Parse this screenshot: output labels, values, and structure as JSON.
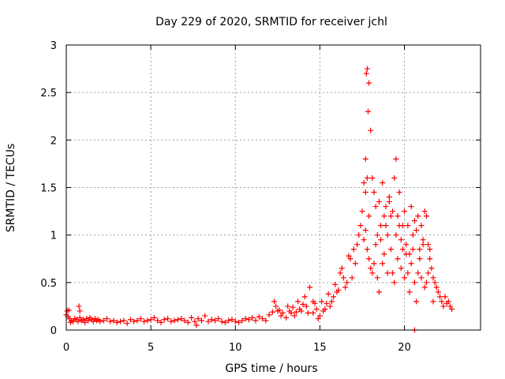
{
  "chart_data": {
    "type": "scatter",
    "title": "Day 229 of 2020, SRMTID for receiver jchl",
    "xlabel": "GPS time / hours",
    "ylabel": "SRMTID / TECUs",
    "xlim": [
      0,
      24.5
    ],
    "ylim": [
      0,
      3
    ],
    "xticks": [
      0,
      5,
      10,
      15,
      20
    ],
    "xtick_labels": [
      "0",
      "5",
      "10",
      "15",
      "20"
    ],
    "yticks": [
      0,
      0.5,
      1,
      1.5,
      2,
      2.5,
      3
    ],
    "ytick_labels": [
      "0",
      "0.5",
      "1",
      "1.5",
      "2",
      "2.5",
      "3"
    ],
    "grid": true,
    "marker": "+",
    "colors": {
      "marker": "#ff0000",
      "grid": "#a0a0a0",
      "axis": "#000000"
    },
    "series": [
      {
        "name": "SRMTID",
        "x": [
          0.0,
          0.05,
          0.1,
          0.15,
          0.2,
          0.25,
          0.3,
          0.4,
          0.5,
          0.6,
          0.7,
          0.75,
          0.8,
          0.9,
          1.0,
          1.1,
          1.2,
          1.3,
          1.4,
          1.5,
          1.6,
          1.7,
          1.8,
          1.9,
          2.0,
          2.2,
          2.4,
          2.6,
          2.8,
          3.0,
          3.2,
          3.4,
          3.6,
          3.8,
          4.0,
          4.2,
          4.4,
          4.6,
          4.8,
          5.0,
          5.2,
          5.4,
          5.6,
          5.8,
          6.0,
          6.2,
          6.4,
          6.6,
          6.8,
          7.0,
          7.2,
          7.4,
          7.6,
          7.7,
          7.8,
          8.0,
          8.2,
          8.4,
          8.6,
          8.8,
          9.0,
          9.2,
          9.4,
          9.6,
          9.8,
          10.0,
          10.2,
          10.4,
          10.6,
          10.8,
          11.0,
          11.2,
          11.4,
          11.6,
          11.8,
          12.0,
          12.2,
          12.4,
          12.6,
          12.8,
          13.0,
          13.2,
          13.4,
          13.6,
          13.8,
          14.0,
          14.2,
          14.4,
          14.6,
          14.8,
          15.0,
          15.2,
          15.4,
          15.6,
          15.8,
          16.0,
          16.2,
          16.4,
          16.6,
          16.8,
          17.0,
          17.2,
          17.4,
          17.5,
          17.6,
          17.7,
          17.75,
          17.8,
          17.85,
          17.9,
          18.0,
          18.1,
          18.2,
          18.3,
          18.4,
          18.5,
          18.6,
          18.7,
          18.8,
          18.9,
          19.0,
          19.1,
          19.2,
          19.3,
          19.4,
          19.5,
          19.6,
          19.7,
          19.8,
          19.9,
          20.0,
          20.1,
          20.2,
          20.3,
          20.4,
          20.5,
          20.6,
          20.7,
          20.8,
          20.9,
          21.0,
          21.1,
          21.2,
          21.3,
          21.4,
          21.5,
          21.6,
          21.7,
          21.8,
          21.9,
          22.0,
          22.1,
          22.2,
          22.3,
          22.4,
          22.5,
          22.6,
          22.7,
          22.8,
          17.6,
          17.7,
          17.8,
          17.9,
          18.0,
          18.2,
          18.4,
          18.6,
          18.8,
          19.0,
          19.2,
          19.4,
          19.6,
          19.8,
          20.0,
          20.2,
          20.4,
          20.6,
          20.8,
          21.0,
          21.2,
          21.4,
          17.7,
          17.8,
          17.9,
          18.1,
          18.3,
          18.5,
          18.7,
          18.9,
          19.1,
          19.3,
          19.5,
          19.7,
          19.9,
          20.1,
          20.3,
          20.5,
          20.7,
          20.9,
          21.1,
          21.3,
          21.5,
          21.7,
          14.6,
          14.7,
          14.9,
          15.1,
          15.3,
          15.5,
          15.7,
          15.9,
          16.1,
          16.3,
          16.5,
          16.7,
          16.9,
          17.1,
          17.3,
          12.3,
          12.5,
          12.7,
          13.1,
          13.3,
          13.5,
          13.7,
          13.9,
          14.1,
          14.3,
          0.8,
          20.6
        ],
        "y": [
          0.16,
          0.2,
          0.14,
          0.21,
          0.12,
          0.08,
          0.1,
          0.09,
          0.12,
          0.11,
          0.09,
          0.25,
          0.13,
          0.1,
          0.11,
          0.08,
          0.12,
          0.1,
          0.13,
          0.11,
          0.09,
          0.12,
          0.1,
          0.11,
          0.09,
          0.1,
          0.12,
          0.09,
          0.1,
          0.08,
          0.09,
          0.1,
          0.07,
          0.11,
          0.09,
          0.1,
          0.12,
          0.09,
          0.1,
          0.11,
          0.13,
          0.1,
          0.08,
          0.11,
          0.12,
          0.09,
          0.1,
          0.11,
          0.12,
          0.1,
          0.08,
          0.13,
          0.09,
          0.05,
          0.12,
          0.1,
          0.15,
          0.09,
          0.11,
          0.1,
          0.12,
          0.09,
          0.08,
          0.1,
          0.11,
          0.09,
          0.08,
          0.1,
          0.12,
          0.11,
          0.13,
          0.1,
          0.14,
          0.12,
          0.1,
          0.16,
          0.19,
          0.25,
          0.21,
          0.18,
          0.13,
          0.2,
          0.24,
          0.19,
          0.22,
          0.27,
          0.25,
          0.45,
          0.3,
          0.22,
          0.15,
          0.2,
          0.28,
          0.25,
          0.35,
          0.4,
          0.6,
          0.55,
          0.5,
          0.75,
          0.85,
          0.9,
          1.1,
          1.25,
          1.55,
          1.8,
          2.7,
          2.75,
          2.3,
          2.6,
          2.1,
          1.6,
          1.45,
          1.3,
          1.0,
          1.35,
          1.1,
          1.55,
          1.2,
          1.3,
          1.0,
          1.4,
          1.2,
          1.25,
          1.6,
          1.8,
          1.2,
          1.1,
          0.95,
          0.85,
          1.25,
          0.9,
          1.1,
          0.8,
          1.3,
          0.85,
          1.15,
          1.05,
          1.2,
          0.85,
          1.1,
          0.95,
          1.25,
          1.2,
          0.9,
          0.75,
          0.65,
          0.55,
          0.5,
          0.45,
          0.4,
          0.35,
          0.3,
          0.25,
          0.35,
          0.28,
          0.3,
          0.25,
          0.22,
          0.95,
          1.05,
          0.85,
          0.75,
          0.65,
          0.7,
          0.55,
          0.95,
          0.8,
          0.6,
          0.85,
          0.5,
          0.75,
          0.65,
          0.55,
          0.6,
          0.7,
          0.5,
          0.6,
          0.55,
          0.45,
          0.6,
          1.45,
          1.6,
          1.2,
          0.6,
          0.9,
          0.4,
          0.7,
          1.1,
          1.35,
          0.6,
          1.0,
          1.45,
          1.1,
          0.8,
          0.4,
          1.0,
          0.3,
          0.75,
          0.9,
          0.5,
          0.85,
          0.3,
          0.18,
          0.28,
          0.12,
          0.3,
          0.22,
          0.38,
          0.3,
          0.48,
          0.42,
          0.65,
          0.45,
          0.78,
          0.55,
          0.7,
          1.0,
          0.3,
          0.2,
          0.15,
          0.25,
          0.18,
          0.15,
          0.3,
          0.2,
          0.35,
          0.18,
          0.2,
          0.0
        ]
      }
    ]
  }
}
